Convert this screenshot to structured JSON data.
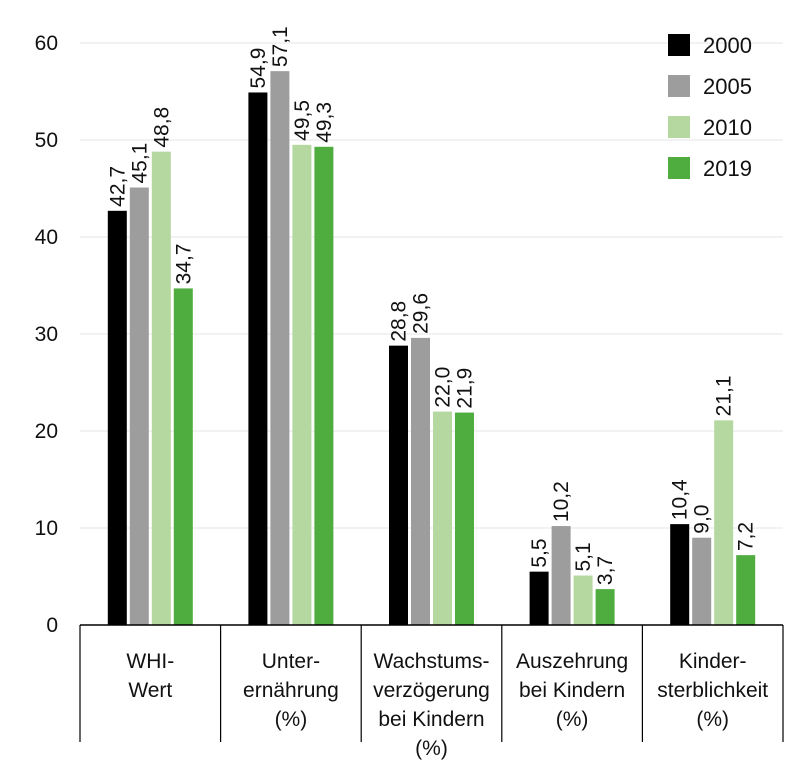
{
  "chart_data": {
    "type": "bar",
    "title": "",
    "xlabel": "",
    "ylabel": "",
    "ylim": [
      0,
      60
    ],
    "yticks": [
      0,
      10,
      20,
      30,
      40,
      50,
      60
    ],
    "grid": true,
    "legend_position": "top-right",
    "categories": [
      [
        "WHI-",
        "Wert"
      ],
      [
        "Unter-",
        "ernährung",
        "(%)"
      ],
      [
        "Wachstums-",
        "verzögerung",
        "bei Kindern",
        "(%)"
      ],
      [
        "Auszehrung",
        "bei Kindern",
        "(%)"
      ],
      [
        "Kinder-",
        "sterblichkeit",
        "(%)"
      ]
    ],
    "series": [
      {
        "name": "2000",
        "color": "#000000",
        "values": [
          42.7,
          54.9,
          28.8,
          5.5,
          10.4
        ],
        "labels": [
          "42,7",
          "54,9",
          "28,8",
          "5,5",
          "10,4"
        ]
      },
      {
        "name": "2005",
        "color": "#9d9d9d",
        "values": [
          45.1,
          57.1,
          29.6,
          10.2,
          9.0
        ],
        "labels": [
          "45,1",
          "57,1",
          "29,6",
          "10,2",
          "9,0"
        ]
      },
      {
        "name": "2010",
        "color": "#b5d8a0",
        "values": [
          48.8,
          49.5,
          22.0,
          5.1,
          21.1
        ],
        "labels": [
          "48,8",
          "49,5",
          "22,0",
          "5,1",
          "21,1"
        ]
      },
      {
        "name": "2019",
        "color": "#4fac3e",
        "values": [
          34.7,
          49.3,
          21.9,
          3.7,
          7.2
        ],
        "labels": [
          "34,7",
          "49,3",
          "21,9",
          "3,7",
          "7,2"
        ]
      }
    ]
  }
}
